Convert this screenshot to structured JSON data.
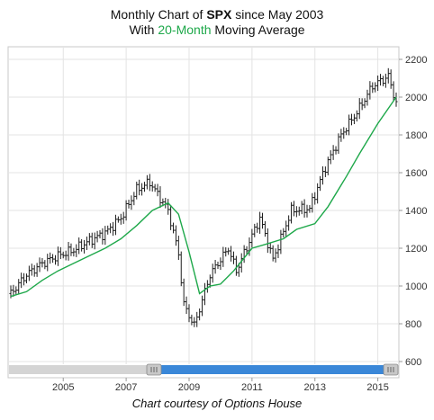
{
  "header": {
    "line1_prefix": "Monthly Chart of ",
    "line1_ticker": "SPX",
    "line1_suffix": " since May 2003",
    "line2_prefix": "With ",
    "line2_highlight": "20-Month",
    "line2_suffix": " Moving Average"
  },
  "footer": {
    "credit": "Chart courtesy of Options House"
  },
  "colors": {
    "price_bars": "#1e1e1e",
    "moving_average": "#1ea84a",
    "grid": "#e3e3e3",
    "scrollbar_track": "#3a87d8",
    "scrollbar_handle": "#c8c8c8"
  },
  "chart_data": {
    "type": "ohlc-bar",
    "title": "Monthly Chart of SPX since May 2003",
    "subtitle": "With 20-Month Moving Average",
    "x_ticks": [
      "2005",
      "2007",
      "2009",
      "2011",
      "2013",
      "2015"
    ],
    "y_ticks": [
      "600",
      "800",
      "1000",
      "1200",
      "1400",
      "1600",
      "1800",
      "2000",
      "2200"
    ],
    "ylim": [
      600,
      2200
    ],
    "y_axis_position": "right",
    "grid": true,
    "series": [
      {
        "name": "SPX",
        "kind": "monthly-ohlc",
        "x": [
          "2003-05",
          "2003-11",
          "2004-05",
          "2004-11",
          "2005-05",
          "2005-11",
          "2006-05",
          "2006-11",
          "2007-05",
          "2007-10",
          "2008-05",
          "2008-09",
          "2008-11",
          "2009-03",
          "2009-09",
          "2010-04",
          "2010-07",
          "2011-04",
          "2011-09",
          "2012-04",
          "2012-11",
          "2013-05",
          "2013-11",
          "2014-05",
          "2014-11",
          "2015-05",
          "2015-08"
        ],
        "close": [
          960,
          1060,
          1120,
          1160,
          1190,
          1240,
          1280,
          1360,
          1510,
          1550,
          1400,
          1170,
          900,
          790,
          1060,
          1200,
          1080,
          1360,
          1140,
          1400,
          1410,
          1630,
          1800,
          1920,
          2060,
          2110,
          1970
        ]
      },
      {
        "name": "20-Month Moving Average",
        "kind": "line",
        "x": [
          "2003-05",
          "2003-11",
          "2004-05",
          "2004-11",
          "2005-05",
          "2005-11",
          "2006-05",
          "2006-11",
          "2007-05",
          "2007-11",
          "2008-05",
          "2008-09",
          "2009-01",
          "2009-05",
          "2009-09",
          "2010-01",
          "2010-06",
          "2011-01",
          "2011-06",
          "2012-01",
          "2012-06",
          "2013-01",
          "2013-06",
          "2014-01",
          "2014-06",
          "2015-01",
          "2015-08"
        ],
        "y": [
          945,
          970,
          1030,
          1080,
          1120,
          1160,
          1200,
          1250,
          1320,
          1400,
          1440,
          1380,
          1180,
          960,
          1000,
          1010,
          1080,
          1200,
          1220,
          1250,
          1300,
          1330,
          1420,
          1580,
          1700,
          1860,
          2000
        ]
      }
    ]
  }
}
